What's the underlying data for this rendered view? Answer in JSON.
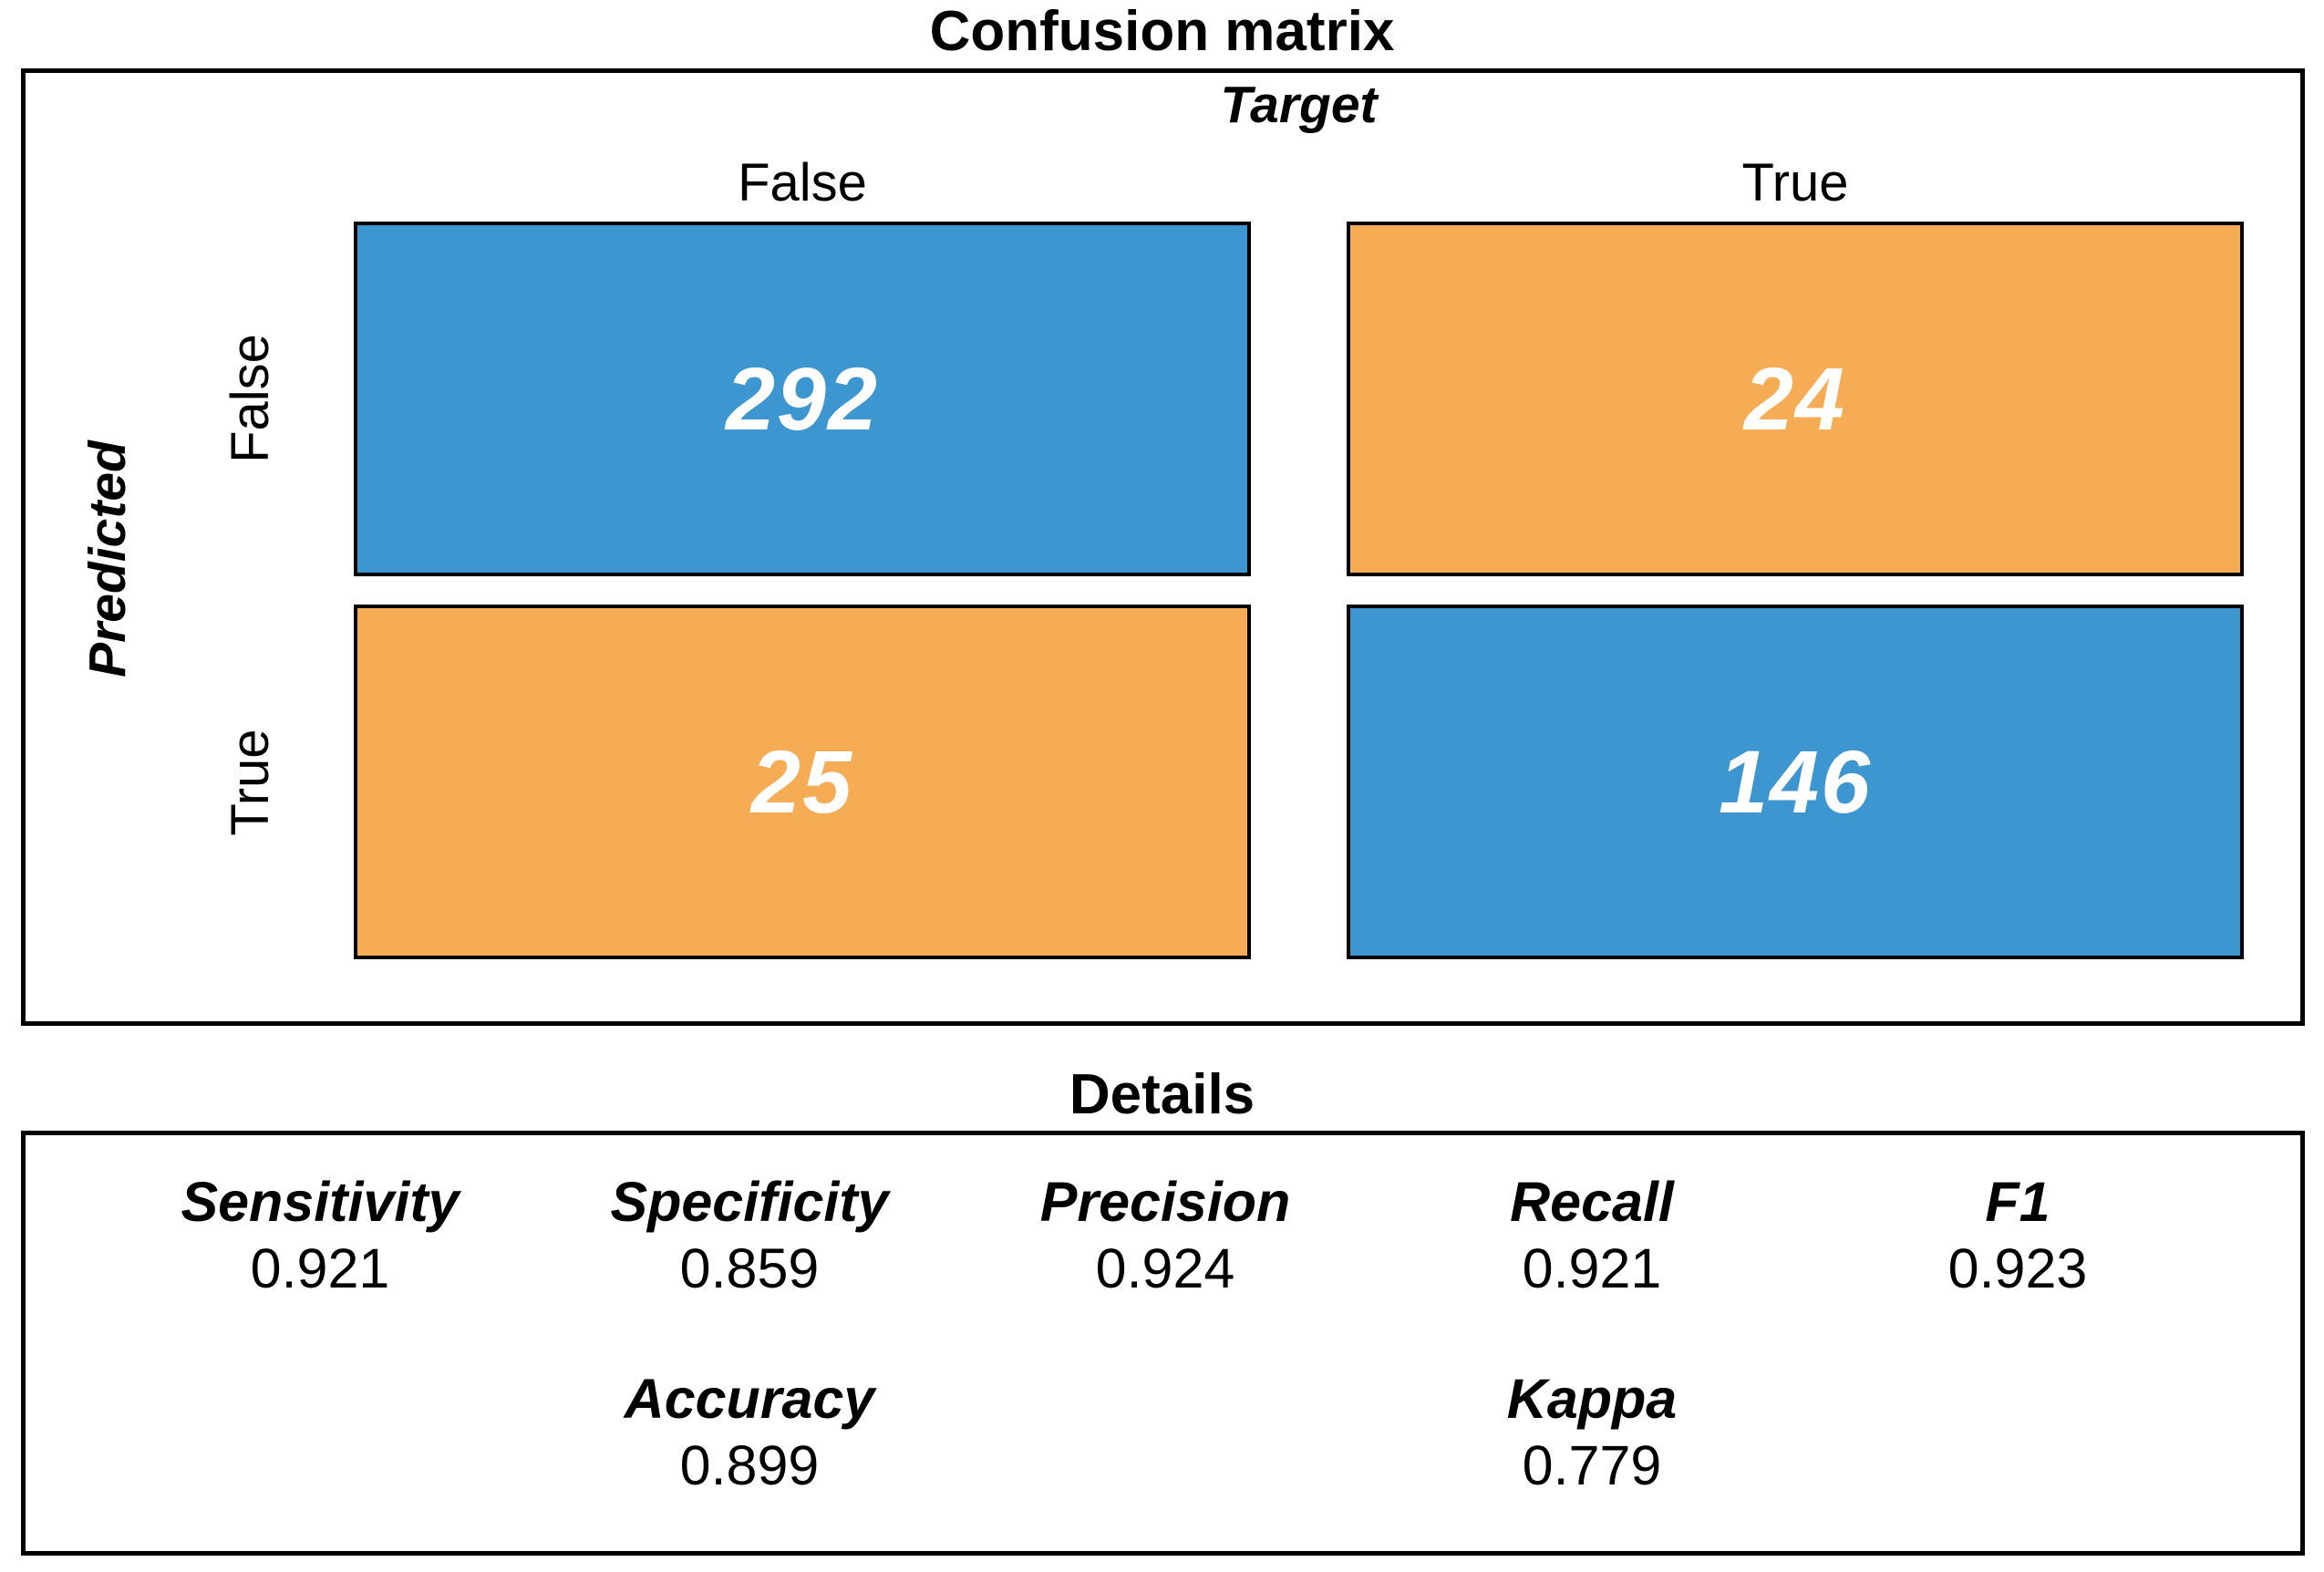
{
  "title": "Confusion matrix",
  "colors": {
    "blue": "#3D96D0",
    "orange": "#F6AC54",
    "cell_text": "#FFFFFF",
    "border": "#000000"
  },
  "matrix": {
    "target_label": "Target",
    "predicted_label": "Predicted",
    "col_headers": [
      "False",
      "True"
    ],
    "row_headers": [
      "False",
      "True"
    ],
    "cells": [
      {
        "predicted": "False",
        "target": "False",
        "value": "292",
        "color": "blue"
      },
      {
        "predicted": "False",
        "target": "True",
        "value": "24",
        "color": "orange"
      },
      {
        "predicted": "True",
        "target": "False",
        "value": "25",
        "color": "orange"
      },
      {
        "predicted": "True",
        "target": "True",
        "value": "146",
        "color": "blue"
      }
    ]
  },
  "details": {
    "title": "Details",
    "metrics_row1": [
      {
        "label": "Sensitivity",
        "value": "0.921"
      },
      {
        "label": "Specificity",
        "value": "0.859"
      },
      {
        "label": "Precision",
        "value": "0.924"
      },
      {
        "label": "Recall",
        "value": "0.921"
      },
      {
        "label": "F1",
        "value": "0.923"
      }
    ],
    "metrics_row2": [
      {
        "label": "Accuracy",
        "value": "0.899"
      },
      {
        "label": "Kappa",
        "value": "0.779"
      }
    ]
  },
  "chart_data": {
    "type": "heatmap",
    "title": "Confusion matrix",
    "x_axis_label": "Target",
    "y_axis_label": "Predicted",
    "x_categories": [
      "False",
      "True"
    ],
    "y_categories": [
      "False",
      "True"
    ],
    "matrix_rows_predicted_cols_target": [
      [
        292,
        24
      ],
      [
        25,
        146
      ]
    ],
    "cell_color_pattern": [
      [
        "blue",
        "orange"
      ],
      [
        "orange",
        "blue"
      ]
    ],
    "legend": "none",
    "metrics": {
      "Sensitivity": 0.921,
      "Specificity": 0.859,
      "Precision": 0.924,
      "Recall": 0.921,
      "F1": 0.923,
      "Accuracy": 0.899,
      "Kappa": 0.779
    }
  }
}
